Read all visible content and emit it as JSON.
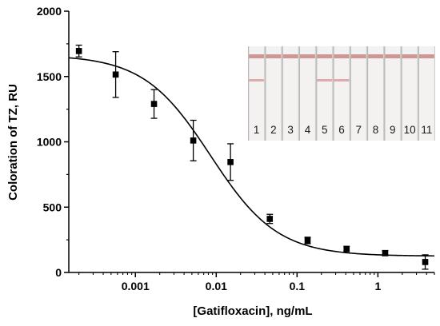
{
  "chart_data": {
    "type": "scatter",
    "title": "",
    "xlabel": "[Gatifloxacin], ng/mL",
    "ylabel": "Coloration of TZ, RU",
    "x_scale": "log",
    "xlim": [
      0.00015,
      5
    ],
    "ylim": [
      0,
      2000
    ],
    "x_ticks": [
      {
        "value": 0.001,
        "label": "0.001"
      },
      {
        "value": 0.01,
        "label": "0.01"
      },
      {
        "value": 0.1,
        "label": "0.1"
      },
      {
        "value": 1,
        "label": "1"
      }
    ],
    "y_ticks": [
      {
        "value": 0,
        "label": "0"
      },
      {
        "value": 500,
        "label": "500"
      },
      {
        "value": 1000,
        "label": "1000"
      },
      {
        "value": 1500,
        "label": "1500"
      },
      {
        "value": 2000,
        "label": "2000"
      }
    ],
    "grid": false,
    "legend": "none",
    "marker": "square",
    "color": "#000000",
    "series": [
      {
        "x": [
          0.0002,
          0.00057,
          0.0017,
          0.0052,
          0.015,
          0.046,
          0.135,
          0.41,
          1.23,
          3.85
        ],
        "y": [
          1695,
          1515,
          1290,
          1010,
          845,
          410,
          245,
          180,
          148,
          80
        ],
        "error": [
          45,
          175,
          110,
          155,
          140,
          35,
          25,
          20,
          20,
          55
        ]
      }
    ],
    "fit": {
      "model": "4PL",
      "top": 1665,
      "bottom": 125,
      "ic50": 0.0085,
      "slope": 1.05
    }
  },
  "inset": {
    "strip_labels": [
      "1",
      "2",
      "3",
      "4",
      "5",
      "6",
      "7",
      "8",
      "9",
      "10",
      "11"
    ],
    "test_line_color": "#e0a3a3",
    "control_line_color": "#c98686",
    "membrane_color": "#f3f2f0"
  }
}
